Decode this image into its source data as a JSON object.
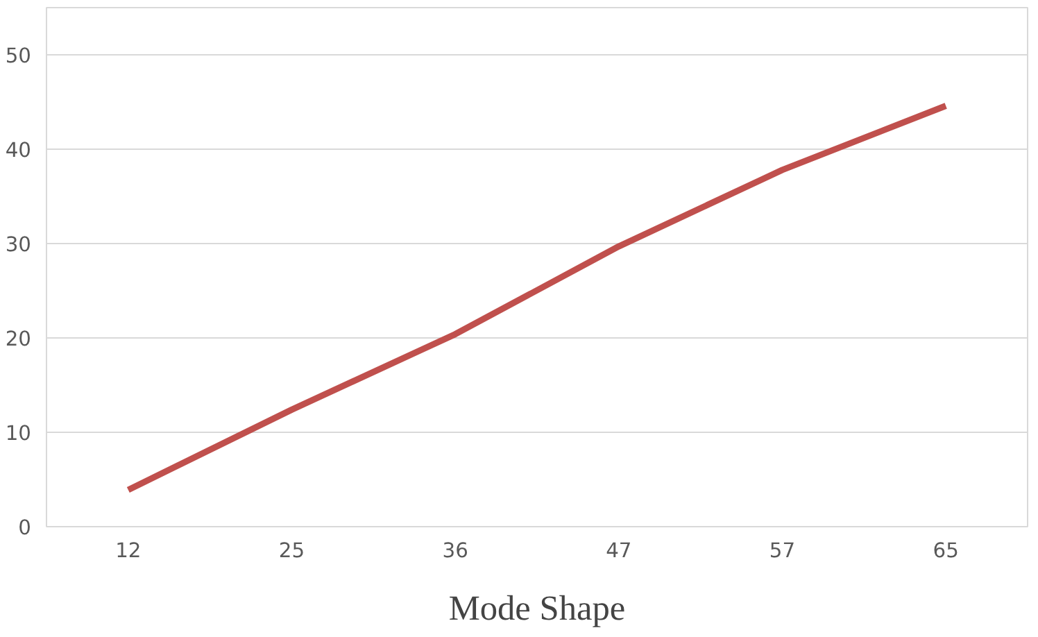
{
  "chart_data": {
    "type": "line",
    "xlabel": "Mode Shape",
    "categories": [
      "12",
      "25",
      "36",
      "47",
      "57",
      "65"
    ],
    "series": [
      {
        "color": "#c0504d",
        "values": [
          3.9,
          12.4,
          20.4,
          29.7,
          37.8,
          44.6
        ]
      }
    ],
    "ylim": [
      0,
      55
    ],
    "yticks": [
      0,
      10,
      20,
      30,
      40,
      50
    ],
    "grid": "y",
    "marker": "none",
    "line_style": "solid"
  }
}
